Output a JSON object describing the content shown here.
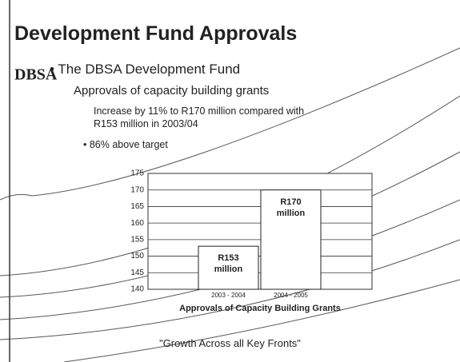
{
  "header": {
    "title": "Development Fund Approvals",
    "logo": "DBSA"
  },
  "bullets": [
    "The DBSA Development Fund",
    "Approvals of capacity building grants",
    "Increase by 11% to R170 million compared with R153 million in 2003/04",
    "86% above target"
  ],
  "footer": "\"Growth Across all Key Fronts\"",
  "chart_data": {
    "type": "bar",
    "categories": [
      "2003 - 2004",
      "2004 - 2005"
    ],
    "values": [
      153,
      170
    ],
    "value_labels": [
      "R153 million",
      "R170 million"
    ],
    "color": "#ffffff",
    "ylim": [
      140,
      175
    ],
    "yticks": [
      140,
      145,
      150,
      155,
      160,
      165,
      170,
      175
    ],
    "grid": true,
    "x_label": "Approvals of Capacity Building Grants"
  }
}
